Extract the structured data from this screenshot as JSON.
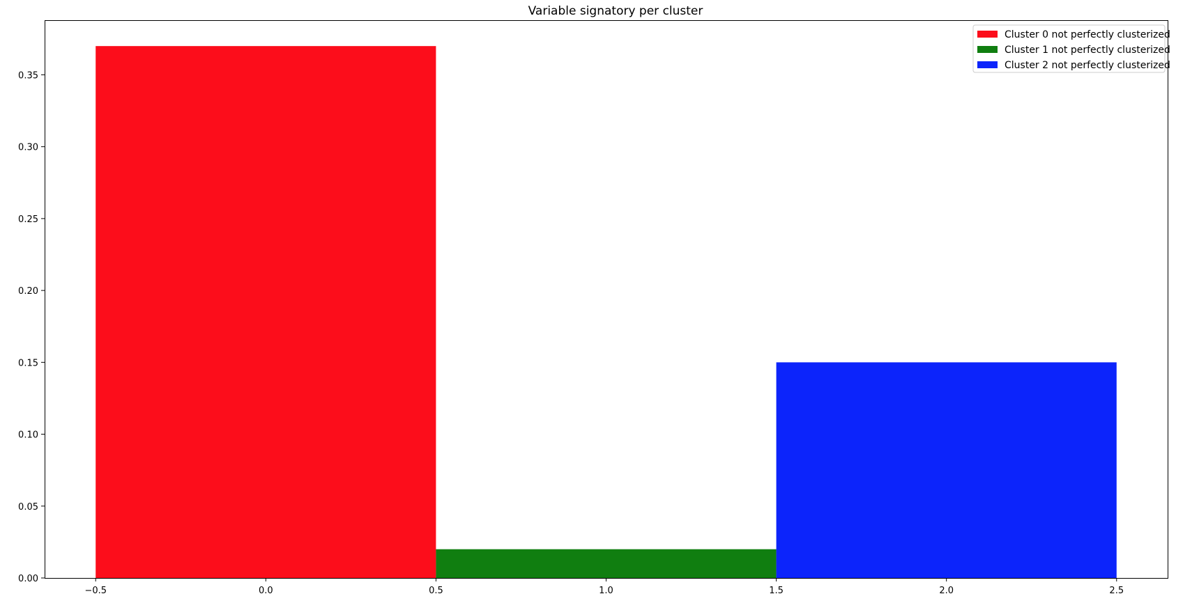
{
  "chart_data": {
    "type": "bar",
    "title": "Variable signatory per cluster",
    "xlabel": "",
    "ylabel": "",
    "xlim": [
      -0.65,
      2.65
    ],
    "ylim": [
      0,
      0.388
    ],
    "x_ticks": [
      -0.5,
      0.0,
      0.5,
      1.0,
      1.5,
      2.0,
      2.5
    ],
    "x_tick_labels": [
      "−0.5",
      "0.0",
      "0.5",
      "1.0",
      "1.5",
      "2.0",
      "2.5"
    ],
    "y_ticks": [
      0.0,
      0.05,
      0.1,
      0.15,
      0.2,
      0.25,
      0.3,
      0.35
    ],
    "y_tick_labels": [
      "0.00",
      "0.05",
      "0.10",
      "0.15",
      "0.20",
      "0.25",
      "0.30",
      "0.35"
    ],
    "bar_width": 1.0,
    "grid": false,
    "legend_position": "top-right",
    "series": [
      {
        "name": "Cluster 0 not perfectly clusterized",
        "x": 0,
        "value": 0.37,
        "color": "#fc0d1b"
      },
      {
        "name": "Cluster 1 not perfectly clusterized",
        "x": 1,
        "value": 0.02,
        "color": "#107e10"
      },
      {
        "name": "Cluster 2 not perfectly clusterized",
        "x": 2,
        "value": 0.15,
        "color": "#0c24fb"
      }
    ]
  }
}
